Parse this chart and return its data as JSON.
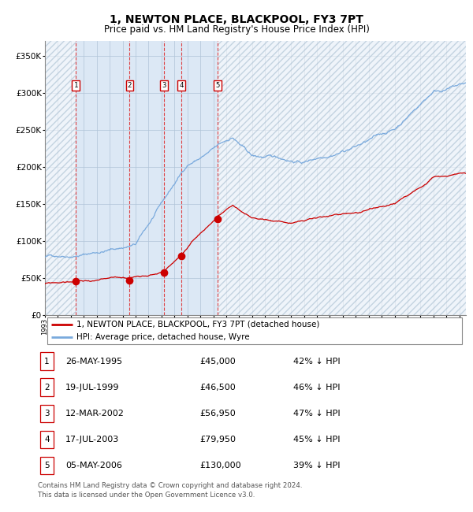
{
  "title": "1, NEWTON PLACE, BLACKPOOL, FY3 7PT",
  "subtitle": "Price paid vs. HM Land Registry's House Price Index (HPI)",
  "xlim_start": 1993.0,
  "xlim_end": 2025.5,
  "ylim": [
    0,
    370000
  ],
  "yticks": [
    0,
    50000,
    100000,
    150000,
    200000,
    250000,
    300000,
    350000
  ],
  "ytick_labels": [
    "£0",
    "£50K",
    "£100K",
    "£150K",
    "£200K",
    "£250K",
    "£300K",
    "£350K"
  ],
  "sale_dates_decimal": [
    1995.39,
    1999.54,
    2002.19,
    2003.54,
    2006.34
  ],
  "sale_prices": [
    45000,
    46500,
    56950,
    79950,
    130000
  ],
  "sale_labels": [
    "1",
    "2",
    "3",
    "4",
    "5"
  ],
  "sale_date_strings": [
    "26-MAY-1995",
    "19-JUL-1999",
    "12-MAR-2002",
    "17-JUL-2003",
    "05-MAY-2006"
  ],
  "sale_price_strings": [
    "£45,000",
    "£46,500",
    "£56,950",
    "£79,950",
    "£130,000"
  ],
  "sale_hpi_strings": [
    "42% ↓ HPI",
    "46% ↓ HPI",
    "47% ↓ HPI",
    "45% ↓ HPI",
    "39% ↓ HPI"
  ],
  "red_line_color": "#cc0000",
  "blue_line_color": "#7aaadd",
  "grid_color": "#b0c4d8",
  "background_color": "#dce8f5",
  "legend_label_red": "1, NEWTON PLACE, BLACKPOOL, FY3 7PT (detached house)",
  "legend_label_blue": "HPI: Average price, detached house, Wyre",
  "footer_text": "Contains HM Land Registry data © Crown copyright and database right 2024.\nThis data is licensed under the Open Government Licence v3.0.",
  "title_fontsize": 10,
  "subtitle_fontsize": 8.5,
  "legend_fontsize": 7.5,
  "table_fontsize": 8
}
